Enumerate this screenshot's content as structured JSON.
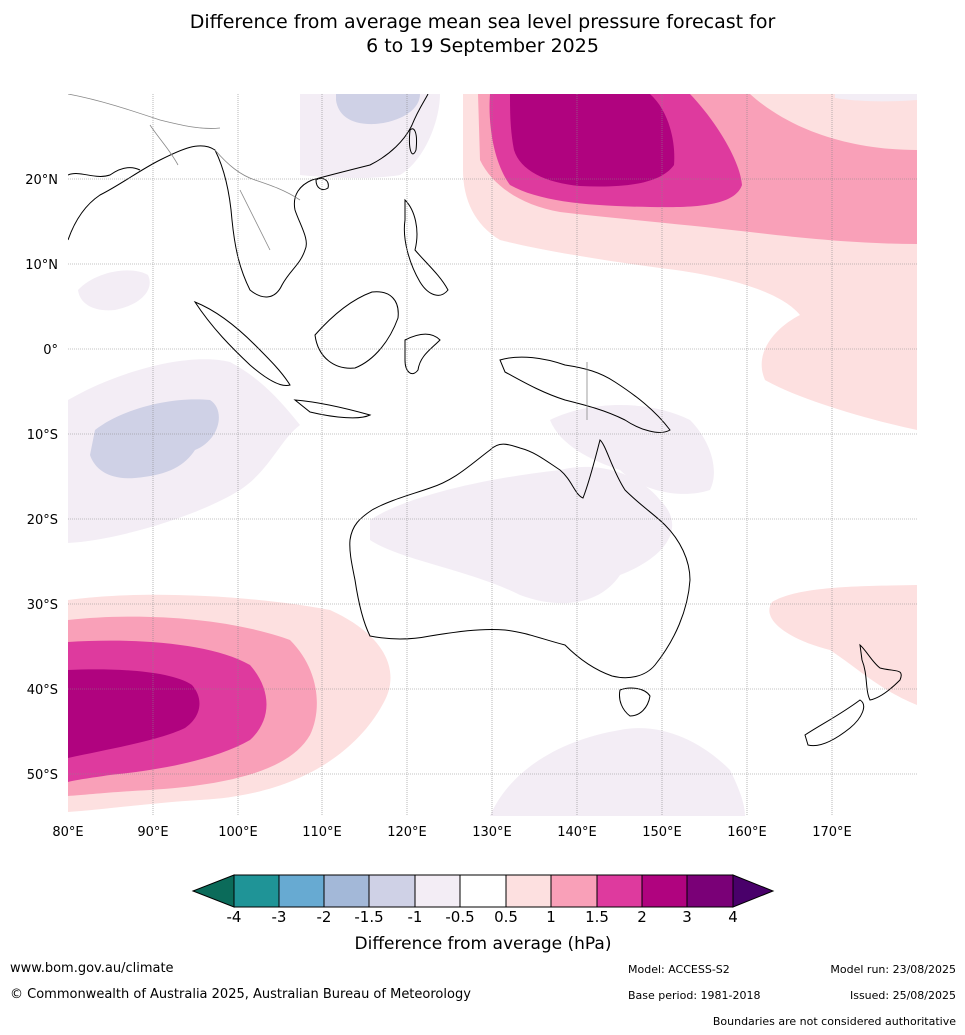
{
  "title": {
    "line1": "Difference from average mean sea level pressure forecast for",
    "line2": "6 to 19 September 2025"
  },
  "axes": {
    "lat_labels": [
      "20°N",
      "10°N",
      "0°",
      "10°S",
      "20°S",
      "30°S",
      "40°S",
      "50°S"
    ],
    "lon_labels": [
      "80°E",
      "90°E",
      "100°E",
      "110°E",
      "120°E",
      "130°E",
      "140°E",
      "150°E",
      "160°E",
      "170°E"
    ]
  },
  "colorbar": {
    "title": "Difference from average (hPa)",
    "ticks": [
      "-4",
      "-3",
      "-2",
      "-1.5",
      "-1",
      "-0.5",
      "0.5",
      "1",
      "1.5",
      "2",
      "3",
      "4"
    ],
    "colors": {
      "below_-4": "#0b6b5a",
      "-4_-3": "#1f9497",
      "-3_-2": "#67aad2",
      "-2_-1.5": "#a3b8d8",
      "-1.5_-1": "#cfd1e6",
      "-1_-0.5": "#f3edf5",
      "-0.5_0.5": "#ffffff",
      "0.5_1": "#fde0e0",
      "1_1.5": "#f9a0b8",
      "1.5_2": "#de3a9e",
      "2_3": "#b0037f",
      "3_4": "#7a0077",
      "above_4": "#49006a"
    }
  },
  "footer": {
    "url": "www.bom.gov.au/climate",
    "copyright": "© Commonwealth of Australia 2025, Australian Bureau of Meteorology",
    "model": "Model: ACCESS-S2",
    "base_period": "Base period: 1981-2018",
    "model_run": "Model run: 23/08/2025",
    "issued": "Issued: 25/08/2025",
    "disclaimer": "Boundaries are not considered authoritative"
  }
}
